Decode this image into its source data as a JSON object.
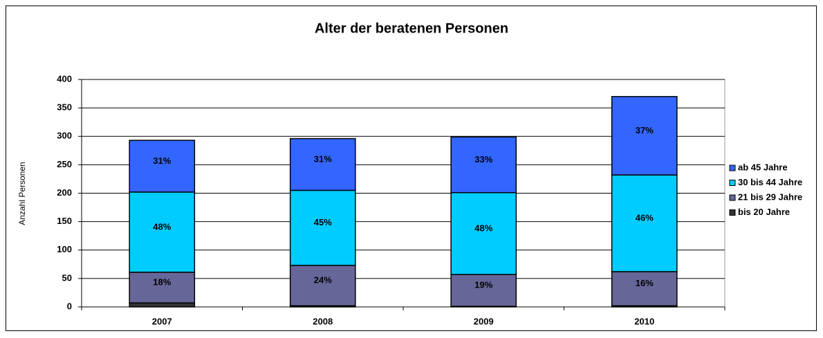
{
  "chart_data": {
    "type": "stacked_bar",
    "title": "Alter der beratenen Personen",
    "ylabel": "Anzahl Personen",
    "categories": [
      "2007",
      "2008",
      "2009",
      "2010"
    ],
    "series": [
      {
        "name": "bis 20 Jahre",
        "color": "#333333",
        "values": [
          7,
          2,
          1,
          2
        ]
      },
      {
        "name": "21 bis 29 Jahre",
        "color": "#666699",
        "values": [
          54,
          71,
          56,
          60
        ],
        "data_labels": [
          "18%",
          "24%",
          "19%",
          "16%"
        ]
      },
      {
        "name": "30 bis 44 Jahre",
        "color": "#00ccff",
        "values": [
          141,
          132,
          144,
          170
        ],
        "data_labels": [
          "48%",
          "45%",
          "48%",
          "46%"
        ]
      },
      {
        "name": "ab 45 Jahre",
        "color": "#3366ff",
        "values": [
          91,
          91,
          98,
          138
        ],
        "data_labels": [
          "31%",
          "31%",
          "33%",
          "37%"
        ]
      }
    ],
    "ylim": [
      0,
      400
    ],
    "yticks": [
      0,
      50,
      100,
      150,
      200,
      250,
      300,
      350,
      400
    ],
    "grid": true,
    "legend": "right"
  }
}
